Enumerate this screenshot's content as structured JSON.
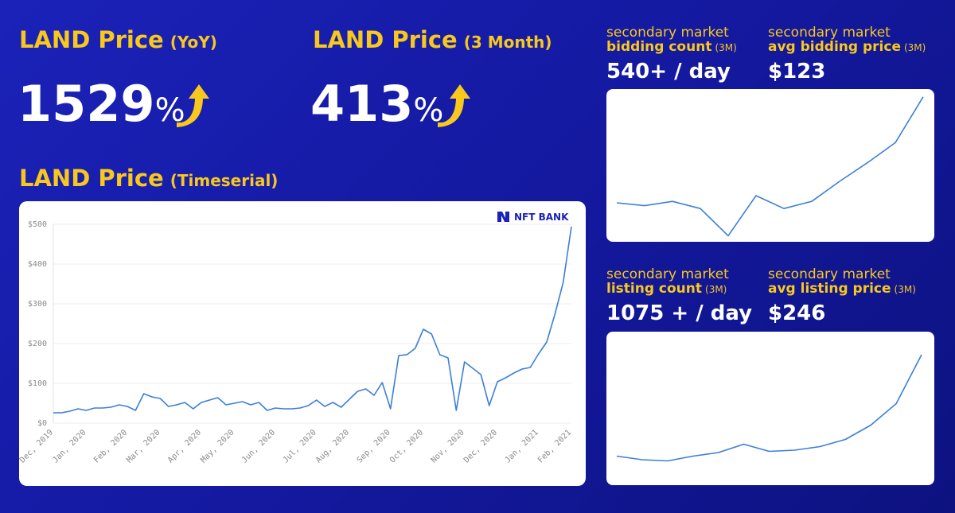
{
  "headlines": [
    {
      "title": "LAND Price",
      "qualifier": "(YoY)",
      "value": "1529",
      "unit": "%"
    },
    {
      "title": "LAND Price",
      "qualifier": "(3 Month)",
      "value": "413",
      "unit": "%"
    }
  ],
  "chart_data": [
    {
      "type": "line",
      "title": "LAND Price",
      "subtitle": "(Timeserial)",
      "brand": "NFT BANK",
      "color": "#3b7fd8",
      "grid": true,
      "x": [
        "Dec, 2019",
        null,
        null,
        null,
        "Jan, 2020",
        null,
        null,
        null,
        null,
        "Feb, 2020",
        null,
        null,
        null,
        "Mar, 2020",
        null,
        null,
        null,
        null,
        "Apr, 2020",
        null,
        null,
        null,
        "May, 2020",
        null,
        null,
        null,
        null,
        "Jun, 2020",
        null,
        null,
        null,
        null,
        "Jul, 2020",
        null,
        null,
        null,
        "Aug, 2020",
        null,
        null,
        null,
        null,
        "Sep, 2020",
        null,
        null,
        null,
        "Oct, 2020",
        null,
        null,
        null,
        null,
        "Nov, 2020",
        null,
        null,
        null,
        "Dec, 2020",
        null,
        null,
        null,
        null,
        "Jan, 2021",
        null,
        null,
        null,
        "Feb, 2021"
      ],
      "values": [
        26,
        26,
        30,
        36,
        32,
        38,
        38,
        40,
        46,
        42,
        32,
        74,
        66,
        62,
        42,
        46,
        52,
        36,
        52,
        58,
        64,
        46,
        50,
        54,
        46,
        52,
        32,
        38,
        36,
        36,
        38,
        44,
        58,
        42,
        52,
        40,
        60,
        80,
        86,
        70,
        102,
        36,
        170,
        172,
        188,
        236,
        224,
        172,
        164,
        32,
        154,
        138,
        122,
        44,
        104,
        114,
        126,
        136,
        140,
        174,
        204,
        274,
        354,
        494
      ],
      "ylim": [
        0,
        500
      ],
      "yticks": [
        {
          "value": 0,
          "label": "$0"
        },
        {
          "value": 100,
          "label": "$100"
        },
        {
          "value": 200,
          "label": "$200"
        },
        {
          "value": 300,
          "label": "$300"
        },
        {
          "value": 400,
          "label": "$400"
        },
        {
          "value": 500,
          "label": "$500"
        }
      ]
    },
    {
      "type": "line",
      "color": "#3b7fd8",
      "stats": [
        {
          "label": "secondary market",
          "metric": "bidding count",
          "period": "(3M)",
          "value": "540+ / day"
        },
        {
          "label": "secondary market",
          "metric": "avg bidding price",
          "period": "(3M)",
          "value": "$123"
        }
      ],
      "values": [
        25,
        23,
        26,
        21,
        2,
        30,
        21,
        26,
        40,
        53,
        67,
        99
      ],
      "ylim": [
        0,
        100
      ]
    },
    {
      "type": "line",
      "color": "#3b7fd8",
      "stats": [
        {
          "label": "secondary market",
          "metric": "listing count",
          "period": "(3M)",
          "value": "1075 + / day"
        },
        {
          "label": "secondary market",
          "metric": "avg listing price",
          "period": "(3M)",
          "value": "$246"
        }
      ],
      "values": [
        11,
        8,
        7,
        11,
        14,
        21,
        15,
        16,
        19,
        25,
        37,
        55,
        96
      ],
      "ylim": [
        0,
        100
      ]
    }
  ]
}
